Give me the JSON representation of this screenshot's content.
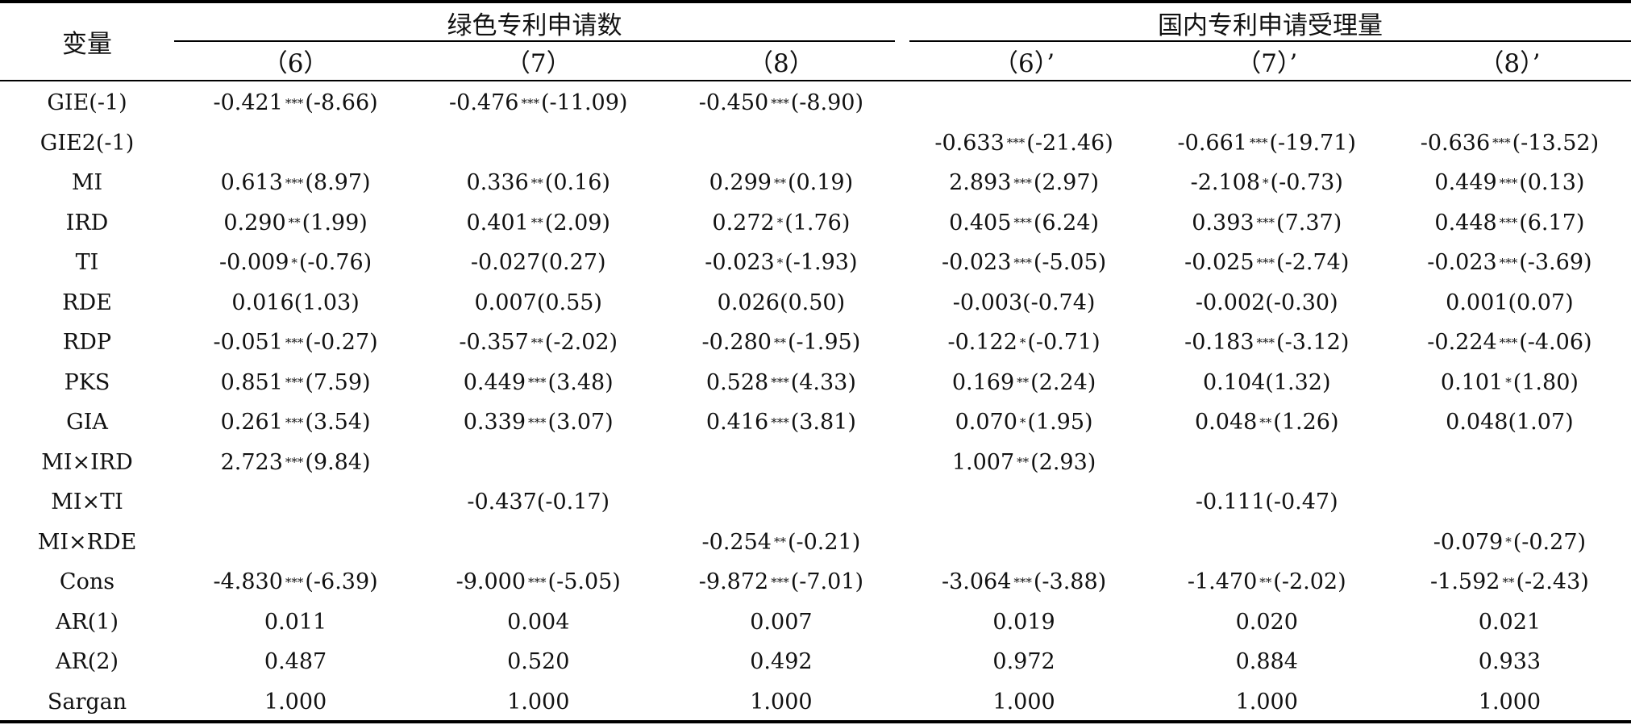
{
  "header": {
    "stub": "变量",
    "groups": [
      {
        "label": "绿色专利申请数"
      },
      {
        "label": "国内专利申请受理量"
      }
    ],
    "columns": [
      "（6）",
      "（7）",
      "（8）",
      "（6）’",
      "（7）’",
      "（8）’"
    ]
  },
  "rows": [
    {
      "label": "GIE(-1)",
      "cells": [
        {
          "v": "-0.421",
          "s": "***",
          "t": "(-8.66)"
        },
        {
          "v": "-0.476",
          "s": "***",
          "t": "(-11.09)"
        },
        {
          "v": "-0.450",
          "s": "***",
          "t": "(-8.90)"
        },
        null,
        null,
        null
      ]
    },
    {
      "label": "GIE2(-1)",
      "cells": [
        null,
        null,
        null,
        {
          "v": "-0.633",
          "s": "***",
          "t": "(-21.46)"
        },
        {
          "v": "-0.661",
          "s": "***",
          "t": "(-19.71)"
        },
        {
          "v": "-0.636",
          "s": "***",
          "t": "(-13.52)"
        }
      ]
    },
    {
      "label": "MI",
      "cells": [
        {
          "v": "0.613",
          "s": "***",
          "t": "(8.97)"
        },
        {
          "v": "0.336",
          "s": "**",
          "t": "(0.16)"
        },
        {
          "v": "0.299",
          "s": "**",
          "t": "(0.19)"
        },
        {
          "v": "2.893",
          "s": "***",
          "t": "(2.97)"
        },
        {
          "v": "-2.108",
          "s": "*",
          "t": "(-0.73)"
        },
        {
          "v": "0.449",
          "s": "***",
          "t": "(0.13)"
        }
      ]
    },
    {
      "label": "IRD",
      "cells": [
        {
          "v": "0.290",
          "s": "**",
          "t": "(1.99)"
        },
        {
          "v": "0.401",
          "s": "**",
          "t": "(2.09)"
        },
        {
          "v": "0.272",
          "s": "*",
          "t": "(1.76)"
        },
        {
          "v": "0.405",
          "s": "***",
          "t": "(6.24)"
        },
        {
          "v": "0.393",
          "s": "***",
          "t": "(7.37)"
        },
        {
          "v": "0.448",
          "s": "***",
          "t": "(6.17)"
        }
      ]
    },
    {
      "label": "TI",
      "cells": [
        {
          "v": "-0.009",
          "s": "*",
          "t": "(-0.76)"
        },
        {
          "v": "-0.027",
          "s": "",
          "t": "(0.27)"
        },
        {
          "v": "-0.023",
          "s": "*",
          "t": "(-1.93)"
        },
        {
          "v": "-0.023",
          "s": "***",
          "t": "(-5.05)"
        },
        {
          "v": "-0.025",
          "s": "***",
          "t": "(-2.74)"
        },
        {
          "v": "-0.023",
          "s": "***",
          "t": "(-3.69)"
        }
      ]
    },
    {
      "label": "RDE",
      "cells": [
        {
          "v": "0.016",
          "s": "",
          "t": "(1.03)"
        },
        {
          "v": "0.007",
          "s": "",
          "t": "(0.55)"
        },
        {
          "v": "0.026",
          "s": "",
          "t": "(0.50)"
        },
        {
          "v": "-0.003",
          "s": "",
          "t": "(-0.74)"
        },
        {
          "v": "-0.002",
          "s": "",
          "t": "(-0.30)"
        },
        {
          "v": "0.001",
          "s": "",
          "t": "(0.07)"
        }
      ]
    },
    {
      "label": "RDP",
      "cells": [
        {
          "v": "-0.051",
          "s": "***",
          "t": "(-0.27)"
        },
        {
          "v": "-0.357",
          "s": "**",
          "t": "(-2.02)"
        },
        {
          "v": "-0.280",
          "s": "**",
          "t": "(-1.95)"
        },
        {
          "v": "-0.122",
          "s": "*",
          "t": "(-0.71)"
        },
        {
          "v": "-0.183",
          "s": "***",
          "t": "(-3.12)"
        },
        {
          "v": "-0.224",
          "s": "***",
          "t": "(-4.06)"
        }
      ]
    },
    {
      "label": "PKS",
      "cells": [
        {
          "v": "0.851",
          "s": "***",
          "t": "(7.59)"
        },
        {
          "v": "0.449",
          "s": "***",
          "t": "(3.48)"
        },
        {
          "v": "0.528",
          "s": "***",
          "t": "(4.33)"
        },
        {
          "v": "0.169",
          "s": "**",
          "t": "(2.24)"
        },
        {
          "v": "0.104",
          "s": "",
          "t": "(1.32)"
        },
        {
          "v": "0.101",
          "s": "*",
          "t": "(1.80)"
        }
      ]
    },
    {
      "label": "GIA",
      "cells": [
        {
          "v": "0.261",
          "s": "***",
          "t": "(3.54)"
        },
        {
          "v": "0.339",
          "s": "***",
          "t": "(3.07)"
        },
        {
          "v": "0.416",
          "s": "***",
          "t": "(3.81)"
        },
        {
          "v": "0.070",
          "s": "*",
          "t": "(1.95)"
        },
        {
          "v": "0.048",
          "s": "**",
          "t": "(1.26)"
        },
        {
          "v": "0.048",
          "s": "",
          "t": "(1.07)"
        }
      ]
    },
    {
      "label": "MI×IRD",
      "cells": [
        {
          "v": "2.723",
          "s": "***",
          "t": "(9.84)"
        },
        null,
        null,
        {
          "v": "1.007",
          "s": "**",
          "t": "(2.93)"
        },
        null,
        null
      ]
    },
    {
      "label": "MI×TI",
      "cells": [
        null,
        {
          "v": "-0.437",
          "s": "",
          "t": "(-0.17)"
        },
        null,
        null,
        {
          "v": "-0.111",
          "s": "",
          "t": "(-0.47)"
        },
        null
      ]
    },
    {
      "label": "MI×RDE",
      "cells": [
        null,
        null,
        {
          "v": "-0.254",
          "s": "**",
          "t": "(-0.21)"
        },
        null,
        null,
        {
          "v": "-0.079",
          "s": "*",
          "t": "(-0.27)"
        }
      ]
    },
    {
      "label": "Cons",
      "cells": [
        {
          "v": "-4.830",
          "s": "***",
          "t": "(-6.39)"
        },
        {
          "v": "-9.000",
          "s": "***",
          "t": "(-5.05)"
        },
        {
          "v": "-9.872",
          "s": "***",
          "t": "(-7.01)"
        },
        {
          "v": "-3.064",
          "s": "***",
          "t": "(-3.88)"
        },
        {
          "v": "-1.470",
          "s": "**",
          "t": "(-2.02)"
        },
        {
          "v": "-1.592",
          "s": "**",
          "t": "(-2.43)"
        }
      ]
    },
    {
      "label": "AR(1)",
      "cells": [
        {
          "v": "0.011"
        },
        {
          "v": "0.004"
        },
        {
          "v": "0.007"
        },
        {
          "v": "0.019"
        },
        {
          "v": "0.020"
        },
        {
          "v": "0.021"
        }
      ]
    },
    {
      "label": "AR(2)",
      "cells": [
        {
          "v": "0.487"
        },
        {
          "v": "0.520"
        },
        {
          "v": "0.492"
        },
        {
          "v": "0.972"
        },
        {
          "v": "0.884"
        },
        {
          "v": "0.933"
        }
      ]
    },
    {
      "label": "Sargan",
      "cells": [
        {
          "v": "1.000"
        },
        {
          "v": "1.000"
        },
        {
          "v": "1.000"
        },
        {
          "v": "1.000"
        },
        {
          "v": "1.000"
        },
        {
          "v": "1.000"
        }
      ]
    }
  ]
}
